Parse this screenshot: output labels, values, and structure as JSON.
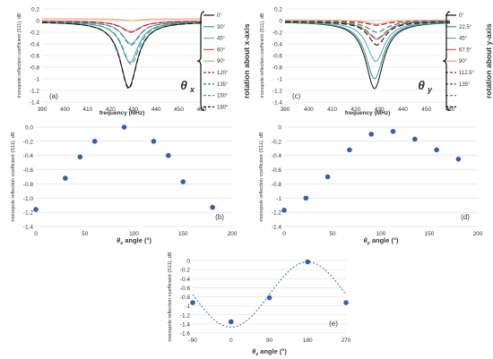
{
  "chart_data": [
    {
      "panel_label": "(a)",
      "type": "line",
      "xlabel": "frequency (MHz)",
      "ylabel": "monopole reflection coefficient (S11), dB",
      "xlim": [
        390,
        460
      ],
      "ylim": [
        -1.4,
        0.2
      ],
      "xticks": [
        390,
        400,
        410,
        420,
        430,
        440,
        450,
        460
      ],
      "yticks": [
        0.2,
        0,
        -0.2,
        -0.4,
        -0.6,
        -0.8,
        -1,
        -1.2,
        -1.4
      ],
      "ytick_labels": [
        "0.2",
        "0",
        "-0.2",
        "-0.4",
        "-0.6",
        "-0.8",
        "-1",
        "-1.2",
        "-1.4"
      ],
      "theta_symbol": "θ",
      "theta_sub": "x",
      "rotation_label": "rotation about x-axis",
      "grid": true,
      "legend_position": "right",
      "series": [
        {
          "name": "0°",
          "color": "#1f2d3d",
          "dash": "solid",
          "min": -1.15,
          "f0": 428,
          "width": 4.5,
          "baseline": -0.02
        },
        {
          "name": "30°",
          "color": "#4e9cc4",
          "dash": "solid",
          "min": -0.72,
          "f0": 428.5,
          "width": 4.5,
          "baseline": -0.02
        },
        {
          "name": "45°",
          "color": "#6dbb8d",
          "dash": "solid",
          "min": -0.4,
          "f0": 429,
          "width": 4.5,
          "baseline": -0.02
        },
        {
          "name": "60°",
          "color": "#e06060",
          "dash": "solid",
          "min": -0.19,
          "f0": 429,
          "width": 5,
          "baseline": -0.01
        },
        {
          "name": "90°",
          "color": "#f2a36b",
          "dash": "solid",
          "min": 0.0,
          "f0": 429,
          "width": 5,
          "baseline": 0.03
        },
        {
          "name": "120°",
          "color": "#c0141c",
          "dash": "6,3",
          "min": -0.2,
          "f0": 429,
          "width": 5,
          "baseline": -0.01
        },
        {
          "name": "135°",
          "color": "#3a7fb4",
          "dash": "6,3",
          "min": -0.42,
          "f0": 429,
          "width": 4.5,
          "baseline": -0.02
        },
        {
          "name": "150°",
          "color": "#2fb06a",
          "dash": "6,3",
          "min": -0.75,
          "f0": 429,
          "width": 4.5,
          "baseline": -0.02
        },
        {
          "name": "180°",
          "color": "#111111",
          "dash": "6,3",
          "min": -1.17,
          "f0": 428,
          "width": 4.5,
          "baseline": -0.02
        }
      ]
    },
    {
      "panel_label": "(c)",
      "type": "line",
      "xlabel": "frequency (MHz)",
      "ylabel": "monopole reflection coefficient (S11), dB",
      "xlim": [
        390,
        460
      ],
      "ylim": [
        -1.4,
        0.2
      ],
      "xticks": [
        390,
        400,
        410,
        420,
        430,
        440,
        450,
        460
      ],
      "yticks": [
        0.2,
        0,
        -0.2,
        -0.4,
        -0.6,
        -0.8,
        -1,
        -1.2,
        -1.4
      ],
      "ytick_labels": [
        "0.2",
        "0",
        "-0.2",
        "-0.4",
        "-0.6",
        "-0.8",
        "-1",
        "-1.2",
        "-1.4"
      ],
      "theta_symbol": "θ",
      "theta_sub": "y",
      "rotation_label": "rotation about y-axis",
      "grid": true,
      "legend_position": "right",
      "series": [
        {
          "name": "0°",
          "color": "#222222",
          "dash": "solid",
          "min": -1.17,
          "f0": 428,
          "width": 4.5,
          "baseline": -0.02
        },
        {
          "name": "22.5°",
          "color": "#3f9e8c",
          "dash": "solid",
          "min": -1.0,
          "f0": 428,
          "width": 4.5,
          "baseline": -0.02
        },
        {
          "name": "45°",
          "color": "#6ea9cc",
          "dash": "solid",
          "min": -0.7,
          "f0": 428.5,
          "width": 4.5,
          "baseline": -0.02
        },
        {
          "name": "67.5°",
          "color": "#e35b5b",
          "dash": "solid",
          "min": -0.32,
          "f0": 429,
          "width": 5,
          "baseline": -0.01
        },
        {
          "name": "90°",
          "color": "#f2a36b",
          "dash": "solid",
          "min": -0.06,
          "f0": 429,
          "width": 5,
          "baseline": 0.01
        },
        {
          "name": "112.5°",
          "color": "#c0141c",
          "dash": "6,3",
          "min": -0.08,
          "f0": 429,
          "width": 5,
          "baseline": -0.01
        },
        {
          "name": "135°",
          "color": "#2f6fa8",
          "dash": "6,3",
          "min": -0.2,
          "f0": 429,
          "width": 5,
          "baseline": -0.01
        },
        {
          "name": "",
          "color": "#2fa86a",
          "dash": "6,3",
          "min": -0.3,
          "f0": 429,
          "width": 5,
          "baseline": -0.01
        },
        {
          "name": "",
          "color": "#111111",
          "dash": "6,3",
          "min": -0.42,
          "f0": 429,
          "width": 4.5,
          "baseline": -0.02
        }
      ]
    },
    {
      "panel_label": "(b)",
      "type": "scatter",
      "xlabel_symbol": "θ",
      "xlabel_sub": "x",
      "xlabel_rest": " angle (°)",
      "ylabel": "monopole reflection coefficient (S11), dB",
      "xlim": [
        0,
        200
      ],
      "ylim": [
        -1.4,
        0.0
      ],
      "xticks": [
        0,
        50,
        100,
        150,
        200
      ],
      "yticks": [
        0,
        -0.2,
        -0.4,
        -0.6,
        -0.8,
        -1,
        -1.2,
        -1.4
      ],
      "ytick_labels": [
        "0.0",
        "-0.2",
        "-0.4",
        "-0.6",
        "-0.8",
        "-1.0",
        "-1.2",
        "-1.4"
      ],
      "x": [
        0,
        30,
        45,
        60,
        90,
        120,
        135,
        150,
        180
      ],
      "y": [
        -1.16,
        -0.72,
        -0.42,
        -0.2,
        0.0,
        -0.2,
        -0.4,
        -0.77,
        -1.13
      ],
      "marker_color": "#3b5bb0",
      "grid": true
    },
    {
      "panel_label": "(d)",
      "type": "scatter",
      "xlabel_symbol": "θ",
      "xlabel_sub": "y",
      "xlabel_rest": " angle (°)",
      "ylabel": "monopole reflection coefficient (S11), dB",
      "xlim": [
        0,
        200
      ],
      "ylim": [
        -1.4,
        0.0
      ],
      "xticks": [
        0,
        50,
        100,
        150,
        200
      ],
      "yticks": [
        0,
        -0.2,
        -0.4,
        -0.6,
        -0.8,
        -1,
        -1.2,
        -1.4
      ],
      "ytick_labels": [
        "0",
        "-0.2",
        "-0.4",
        "-0.6",
        "-0.8",
        "-1",
        "-1.2",
        "-1.4"
      ],
      "x": [
        0,
        22.5,
        45,
        67.5,
        90,
        112.5,
        135,
        157.5,
        180
      ],
      "y": [
        -1.17,
        -1.0,
        -0.7,
        -0.32,
        -0.1,
        -0.06,
        -0.17,
        -0.32,
        -0.45
      ],
      "marker_color": "#3b5bb0",
      "grid": true
    },
    {
      "panel_label": "(e)",
      "type": "scatter",
      "xlabel_symbol": "θ",
      "xlabel_sub": "z",
      "xlabel_rest": " angle (°)",
      "ylabel": "monopole reflection coefficient (S11), dB",
      "xlim": [
        -90,
        270
      ],
      "ylim": [
        -1.6,
        0.0
      ],
      "xticks": [
        -90,
        0,
        90,
        180,
        270
      ],
      "yticks": [
        0,
        -0.2,
        -0.4,
        -0.6,
        -0.8,
        -1,
        -1.2,
        -1.4,
        -1.6
      ],
      "ytick_labels": [
        "0",
        "-0.2",
        "-0.4",
        "-0.6",
        "-0.8",
        "-1",
        "-1.2",
        "-1.4",
        "-1.6"
      ],
      "x": [
        -90,
        0,
        90,
        180,
        270
      ],
      "y": [
        -0.93,
        -1.35,
        -0.82,
        -0.03,
        -0.93
      ],
      "fit": {
        "type": "sinusoid",
        "mean": -0.75,
        "amplitude": 0.72,
        "period": 360,
        "phase_deg": 180
      },
      "marker_color": "#3b5bb0",
      "fit_color": "#3b6fc0",
      "grid": true
    }
  ]
}
